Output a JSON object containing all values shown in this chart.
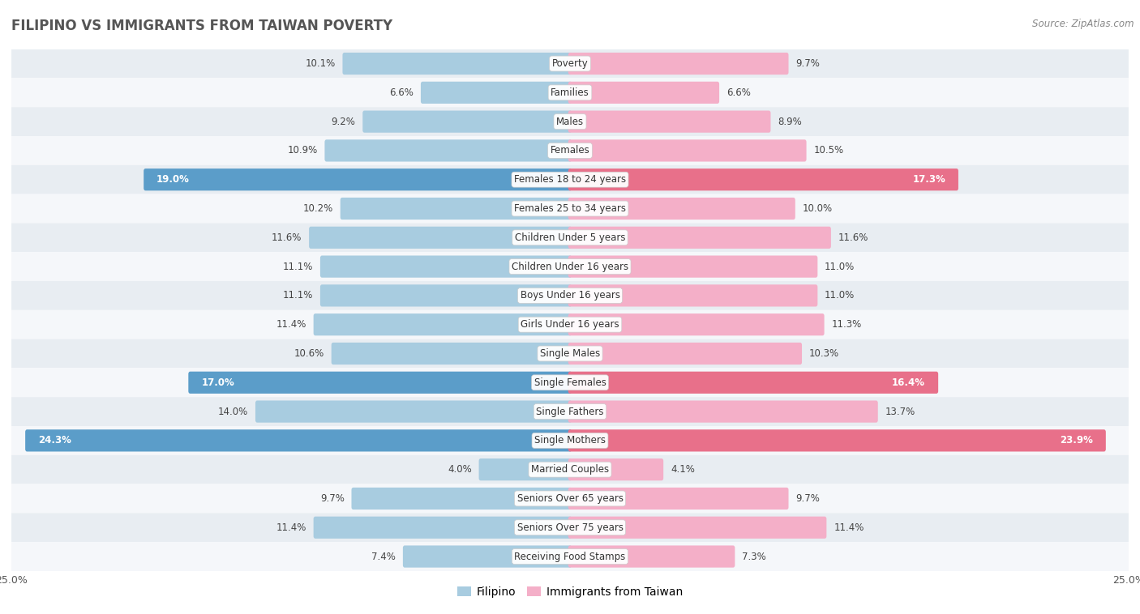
{
  "title": "FILIPINO VS IMMIGRANTS FROM TAIWAN POVERTY",
  "source": "Source: ZipAtlas.com",
  "categories": [
    "Poverty",
    "Families",
    "Males",
    "Females",
    "Females 18 to 24 years",
    "Females 25 to 34 years",
    "Children Under 5 years",
    "Children Under 16 years",
    "Boys Under 16 years",
    "Girls Under 16 years",
    "Single Males",
    "Single Females",
    "Single Fathers",
    "Single Mothers",
    "Married Couples",
    "Seniors Over 65 years",
    "Seniors Over 75 years",
    "Receiving Food Stamps"
  ],
  "filipino_values": [
    10.1,
    6.6,
    9.2,
    10.9,
    19.0,
    10.2,
    11.6,
    11.1,
    11.1,
    11.4,
    10.6,
    17.0,
    14.0,
    24.3,
    4.0,
    9.7,
    11.4,
    7.4
  ],
  "taiwan_values": [
    9.7,
    6.6,
    8.9,
    10.5,
    17.3,
    10.0,
    11.6,
    11.0,
    11.0,
    11.3,
    10.3,
    16.4,
    13.7,
    23.9,
    4.1,
    9.7,
    11.4,
    7.3
  ],
  "filipino_color": "#a8cce0",
  "taiwan_color": "#f4afc8",
  "highlight_filipino_color": "#5b9dc9",
  "highlight_taiwan_color": "#e8708a",
  "highlight_rows": [
    4,
    11,
    13
  ],
  "background_color": "#ffffff",
  "row_bg_light": "#e8edf2",
  "row_bg_white": "#f5f7fa",
  "axis_max": 25.0,
  "bar_height": 0.6,
  "legend_labels": [
    "Filipino",
    "Immigrants from Taiwan"
  ]
}
